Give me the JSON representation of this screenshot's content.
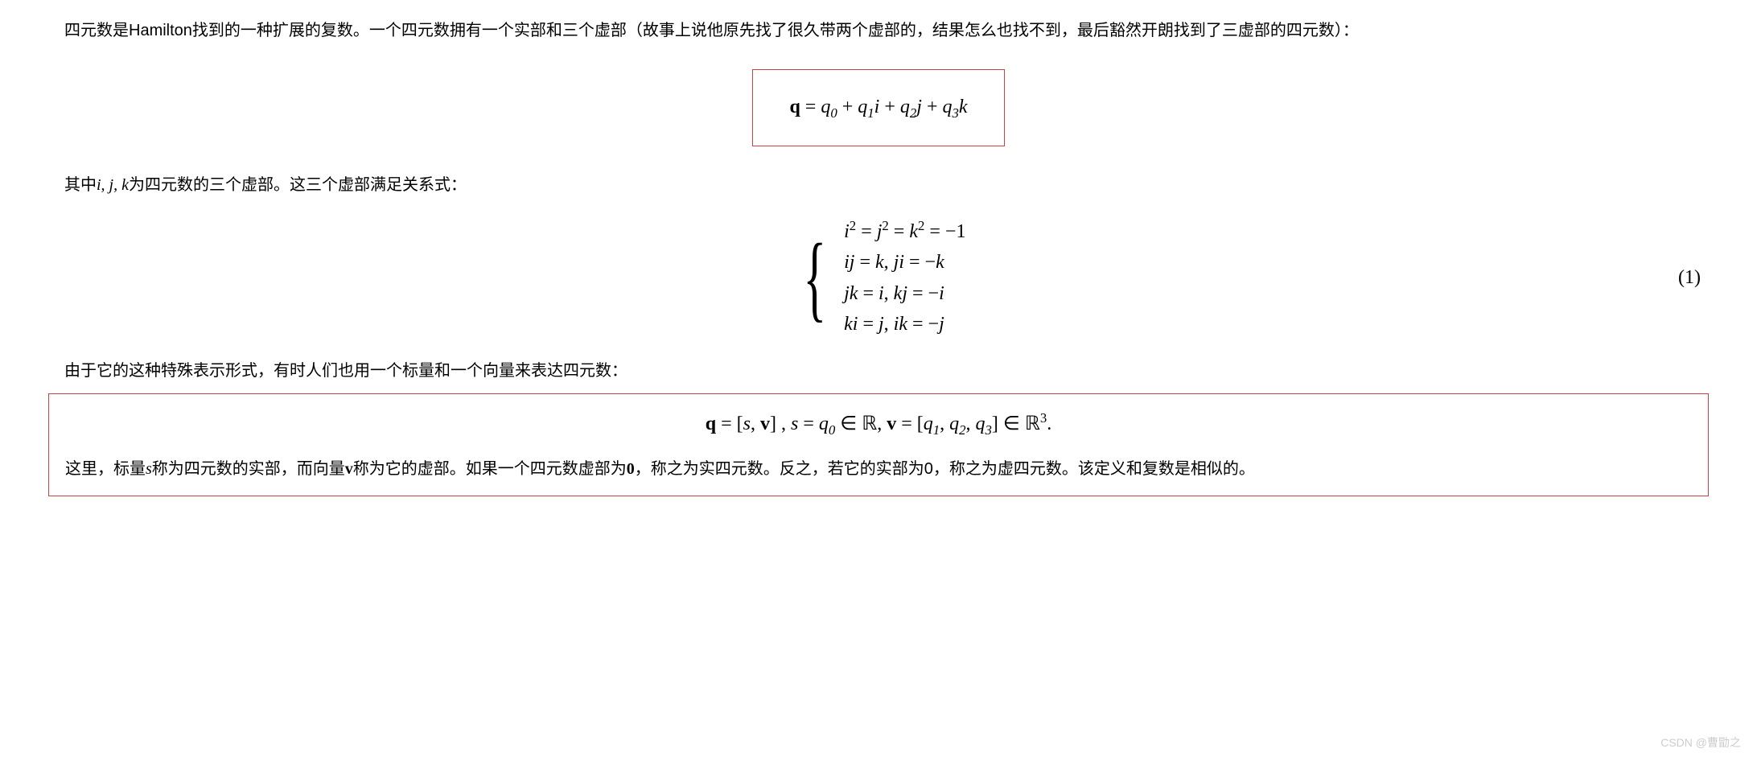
{
  "para1": "四元数是Hamilton找到的一种扩展的复数。一个四元数拥有一个实部和三个虚部（故事上说他原先找了很久带两个虚部的，结果怎么也找不到，最后豁然开朗找到了三虚部的四元数）：",
  "equation1": {
    "q_label": "q",
    "expr_parts": {
      "eq": " = ",
      "t0": "q",
      "s0": "0",
      "plus1": " + ",
      "t1": "q",
      "s1": "1",
      "i": "i",
      "plus2": " + ",
      "t2": "q",
      "s2": "2",
      "j": "j",
      "plus3": " + ",
      "t3": "q",
      "s3": "3",
      "k": "k"
    },
    "box_color": "#d04040"
  },
  "para2_pre": "其中",
  "para2_ijk": "i, j, k",
  "para2_post": "为四元数的三个虚部。这三个虚部满足关系式：",
  "system": {
    "line1": {
      "a": "i",
      "ae": "2",
      "eq1": " = ",
      "b": "j",
      "be": "2",
      "eq2": " = ",
      "c": "k",
      "ce": "2",
      "eq3": " = −1"
    },
    "line2": {
      "a": "ij",
      "eq1": " = ",
      "b": "k",
      "c": ", ",
      "d": "ji",
      "eq2": " = −",
      "e": "k"
    },
    "line3": {
      "a": "jk",
      "eq1": " = ",
      "b": "i",
      "c": ", ",
      "d": "kj",
      "eq2": " = −",
      "e": "i"
    },
    "line4": {
      "a": "ki",
      "eq1": " = ",
      "b": "j",
      "c": ", ",
      "d": "ik",
      "eq2": " = −",
      "e": "j"
    }
  },
  "eq_number": "(1)",
  "para3": "由于它的这种特殊表示形式，有时人们也用一个标量和一个向量来表达四元数：",
  "equation2": {
    "q": "q",
    "eq1": " = [",
    "s": "s",
    "comma1": ", ",
    "v": "v",
    "close1": "] ,    ",
    "s2": "s",
    "eq2": " = ",
    "q0": "q",
    "q0s": "0",
    "in1": " ∈ ",
    "R": "ℝ",
    "comma2": ", ",
    "v2": "v",
    "eq3": " = [",
    "q1": "q",
    "q1s": "1",
    "c1": ", ",
    "q2": "q",
    "q2s": "2",
    "c2": ", ",
    "q3": "q",
    "q3s": "3",
    "close2": "] ∈ ",
    "R3": "ℝ",
    "R3e": "3",
    "dot": "."
  },
  "para4_pre": "这里，标量",
  "para4_s": "s",
  "para4_mid1": "称为四元数的实部，而向量",
  "para4_v": "v",
  "para4_mid2": "称为它的虚部。如果一个四元数虚部为",
  "para4_zero1": "0",
  "para4_mid3": "，称之为实四元数。反之，若它的实部为0，称之为虚四元数。该定义和复数是相似的。",
  "watermark": "CSDN @曹勖之"
}
